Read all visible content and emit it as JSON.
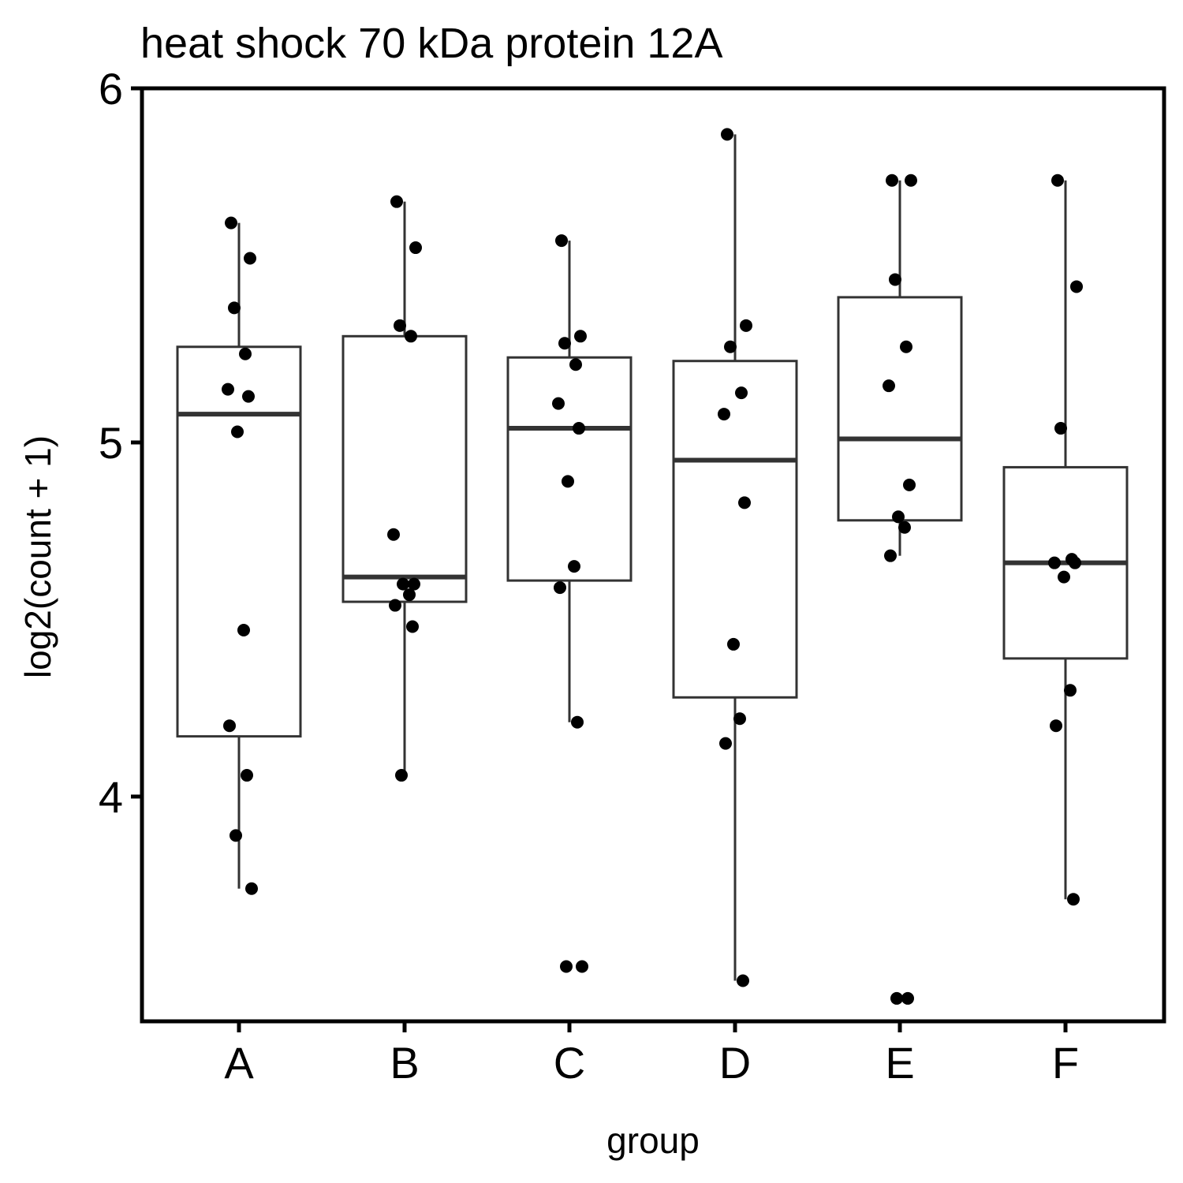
{
  "chart_data": {
    "type": "box",
    "title": "heat shock 70 kDa protein 12A",
    "xlabel": "group",
    "ylabel": "log2(count + 1)",
    "ylim": [
      3.29,
      6.0
    ],
    "yticks": [
      "4",
      "5",
      "6"
    ],
    "categories": [
      "A",
      "B",
      "C",
      "D",
      "E",
      "F"
    ],
    "grid": false,
    "legend": "none",
    "boxes": [
      {
        "group": "A",
        "whisker_low": 3.74,
        "q1": 4.17,
        "median": 5.08,
        "q3": 5.27,
        "whisker_high": 5.62
      },
      {
        "group": "B",
        "whisker_low": 4.06,
        "q1": 4.55,
        "median": 4.62,
        "q3": 5.3,
        "whisker_high": 5.68
      },
      {
        "group": "C",
        "whisker_low": 4.21,
        "q1": 4.61,
        "median": 5.04,
        "q3": 5.24,
        "whisker_high": 5.57
      },
      {
        "group": "D",
        "whisker_low": 3.48,
        "q1": 4.28,
        "median": 4.95,
        "q3": 5.23,
        "whisker_high": 5.87
      },
      {
        "group": "E",
        "whisker_low": 4.68,
        "q1": 4.78,
        "median": 5.01,
        "q3": 5.41,
        "whisker_high": 5.74
      },
      {
        "group": "F",
        "whisker_low": 3.71,
        "q1": 4.39,
        "median": 4.66,
        "q3": 4.93,
        "whisker_high": 5.74
      }
    ],
    "points": [
      {
        "group": "A",
        "values": [
          5.62,
          5.52,
          5.38,
          5.25,
          5.15,
          5.13,
          5.03,
          4.47,
          4.2,
          4.06,
          3.89,
          3.74
        ]
      },
      {
        "group": "B",
        "values": [
          5.68,
          5.55,
          5.33,
          5.3,
          4.74,
          4.6,
          4.6,
          4.57,
          4.54,
          4.48,
          4.06
        ]
      },
      {
        "group": "C",
        "values": [
          5.57,
          5.3,
          5.28,
          5.22,
          5.11,
          5.04,
          4.89,
          4.65,
          4.59,
          4.21,
          3.52,
          3.52
        ]
      },
      {
        "group": "D",
        "values": [
          5.87,
          5.33,
          5.27,
          5.14,
          5.08,
          4.83,
          4.43,
          4.22,
          4.15,
          3.48
        ]
      },
      {
        "group": "E",
        "values": [
          5.74,
          5.74,
          5.46,
          5.27,
          5.16,
          4.88,
          4.79,
          4.76,
          4.68,
          3.43,
          3.43
        ]
      },
      {
        "group": "F",
        "values": [
          5.74,
          5.44,
          5.04,
          4.67,
          4.66,
          4.66,
          4.62,
          4.3,
          4.2,
          3.71
        ]
      }
    ]
  }
}
